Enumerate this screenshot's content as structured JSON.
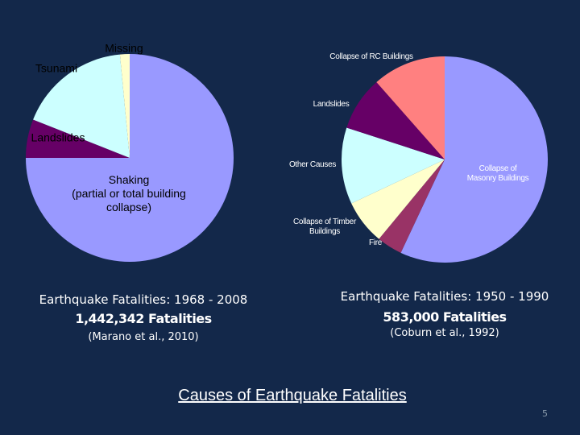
{
  "chart_data": [
    {
      "type": "pie",
      "categories": [
        "Shaking\n(partial or total building\ncollapse)",
        "Landslides",
        "Tsunami",
        "Missing"
      ],
      "values": [
        75,
        6,
        17.5,
        1.5
      ],
      "colors": [
        "#9999ff",
        "#660066",
        "#ccffff",
        "#ffffcc"
      ],
      "caption": [
        "Earthquake Fatalities: 1968 - 2008",
        "1,442,342 Fatalities",
        "(Marano et al., 2010)"
      ]
    },
    {
      "type": "pie",
      "categories": [
        "Collapse of\nMasonry Buildings",
        "Fire",
        "Collapse of Timber\nBuildings",
        "Other Causes",
        "Landslides",
        "Collapse of RC Buildings"
      ],
      "values": [
        57,
        4,
        7,
        12,
        8.5,
        11.5
      ],
      "colors": [
        "#9999ff",
        "#993366",
        "#ffffcc",
        "#ccffff",
        "#660066",
        "#ff8080"
      ],
      "caption": [
        "Earthquake Fatalities: 1950 - 1990",
        "583,000 Fatalities",
        "(Coburn et al., 1992)"
      ]
    }
  ],
  "slide": {
    "title": "Causes of Earthquake Fatalities",
    "page_number": 5
  }
}
